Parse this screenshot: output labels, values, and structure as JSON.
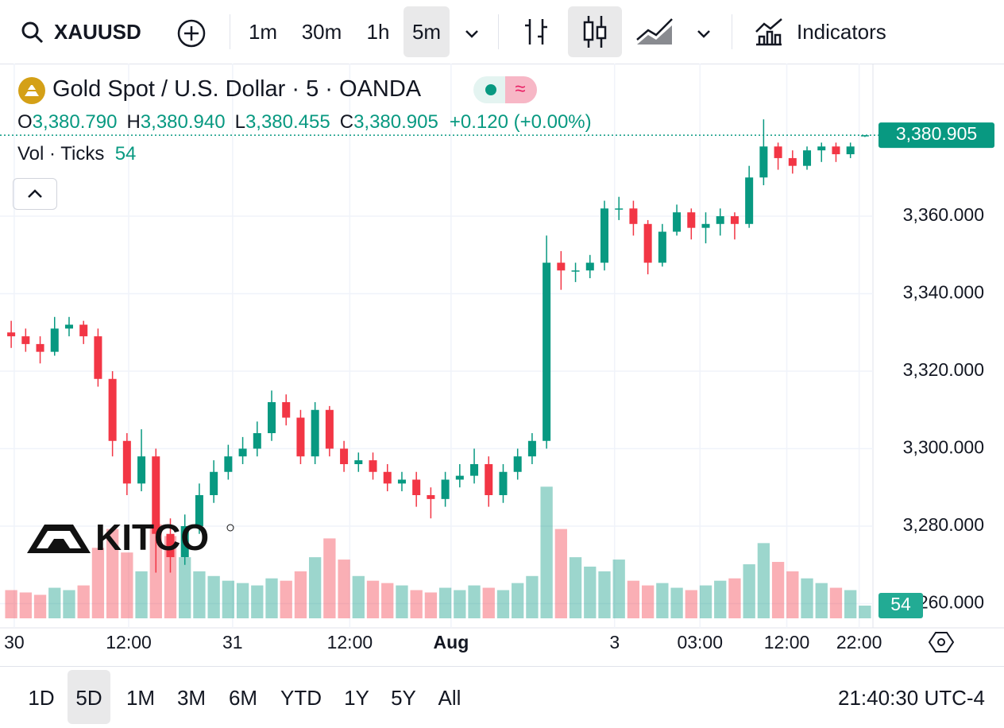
{
  "toolbar": {
    "symbol": "XAUUSD",
    "intervals": [
      "1m",
      "30m",
      "1h",
      "5m"
    ],
    "selected_interval": 3,
    "indicators": "Indicators"
  },
  "legend": {
    "title": "Gold Spot / U.S. Dollar · 5 · OANDA",
    "ohlc": [
      {
        "key": "O",
        "value": "3,380.790"
      },
      {
        "key": "H",
        "value": "3,380.940"
      },
      {
        "key": "L",
        "value": "3,380.455"
      },
      {
        "key": "C",
        "value": "3,380.905"
      }
    ],
    "change": "+0.120 (+0.00%)",
    "volume_label": "Vol · Ticks",
    "volume_value": "54"
  },
  "logo": "KITCO",
  "chart_data": {
    "type": "candlestick",
    "open": [
      3330,
      3329,
      3327,
      3325,
      3331,
      3332,
      3329,
      3318,
      3302,
      3291,
      3298,
      3278,
      3272,
      3280,
      3288,
      3294,
      3298,
      3300,
      3304,
      3312,
      3308,
      3298,
      3310,
      3300,
      3296,
      3297,
      3294,
      3291,
      3292,
      3288,
      3287,
      3292,
      3293,
      3296,
      3288,
      3294,
      3298,
      3302,
      3348,
      3346,
      3346,
      3348,
      3362,
      3362,
      3358,
      3348,
      3356,
      3361,
      3357,
      3358,
      3360,
      3358,
      3370,
      3378,
      3375,
      3373,
      3377,
      3378,
      3376,
      3380.79
    ],
    "high": [
      3333,
      3331,
      3329,
      3334,
      3334,
      3333,
      3331,
      3320,
      3304,
      3305,
      3300,
      3282,
      3283,
      3291,
      3297,
      3301,
      3303,
      3307,
      3315,
      3314,
      3310,
      3312,
      3311,
      3302,
      3299,
      3299,
      3296,
      3294,
      3294,
      3290,
      3294,
      3296,
      3300,
      3298,
      3296,
      3300,
      3304,
      3355,
      3351,
      3348,
      3350,
      3364,
      3365,
      3364,
      3359,
      3358,
      3363,
      3362,
      3361,
      3362,
      3361,
      3373,
      3385,
      3379,
      3377,
      3378,
      3379,
      3379,
      3379,
      3380.94
    ],
    "low": [
      3326,
      3325,
      3322,
      3324,
      3329,
      3327,
      3316,
      3298,
      3288,
      3289,
      3268,
      3268,
      3270,
      3278,
      3286,
      3292,
      3296,
      3298,
      3302,
      3306,
      3296,
      3296,
      3298,
      3294,
      3294,
      3292,
      3289,
      3289,
      3285,
      3282,
      3285,
      3290,
      3291,
      3285,
      3286,
      3292,
      3296,
      3300,
      3341,
      3343,
      3344,
      3346,
      3359,
      3355,
      3345,
      3347,
      3355,
      3354,
      3353,
      3355,
      3354,
      3357,
      3368,
      3372,
      3371,
      3372,
      3374,
      3374,
      3375,
      3380.455
    ],
    "close": [
      3329,
      3327,
      3325,
      3331,
      3332,
      3329,
      3318,
      3302,
      3291,
      3298,
      3278,
      3272,
      3280,
      3288,
      3294,
      3298,
      3300,
      3304,
      3312,
      3308,
      3298,
      3310,
      3300,
      3296,
      3297,
      3294,
      3291,
      3292,
      3288,
      3287,
      3292,
      3293,
      3296,
      3288,
      3294,
      3298,
      3302,
      3348,
      3346,
      3346,
      3348,
      3362,
      3362,
      3358,
      3348,
      3356,
      3361,
      3357,
      3358,
      3360,
      3358,
      3370,
      3378,
      3375,
      3373,
      3377,
      3378,
      3376,
      3378,
      3380.905
    ],
    "volume": [
      120,
      110,
      100,
      130,
      120,
      140,
      300,
      380,
      280,
      200,
      400,
      350,
      260,
      200,
      180,
      160,
      150,
      140,
      170,
      160,
      200,
      260,
      340,
      250,
      180,
      160,
      150,
      140,
      120,
      110,
      130,
      120,
      140,
      130,
      120,
      150,
      180,
      560,
      380,
      260,
      220,
      200,
      250,
      160,
      140,
      150,
      130,
      120,
      140,
      160,
      170,
      230,
      320,
      240,
      200,
      170,
      150,
      130,
      120,
      54
    ],
    "up_color": "#089981",
    "down_color": "#f23645",
    "xlim": [
      0,
      60
    ],
    "xticks": [
      {
        "value": 0.71,
        "label": "30"
      },
      {
        "value": 8.62,
        "label": "12:00"
      },
      {
        "value": 15.8,
        "label": "31"
      },
      {
        "value": 23.9,
        "label": "12:00"
      },
      {
        "value": 30.9,
        "label": "Aug",
        "bold": true
      },
      {
        "value": 42.2,
        "label": "3"
      },
      {
        "value": 48.1,
        "label": "03:00"
      },
      {
        "value": 54.1,
        "label": "12:00"
      },
      {
        "value": 59.1,
        "label": "22:00"
      }
    ],
    "ylim": [
      3256.2,
      3399.4
    ],
    "yticks": [
      {
        "value": 3260,
        "label": "3,260.000"
      },
      {
        "value": 3280,
        "label": "3,280.000"
      },
      {
        "value": 3300,
        "label": "3,300.000"
      },
      {
        "value": 3320,
        "label": "3,320.000"
      },
      {
        "value": 3340,
        "label": "3,340.000"
      },
      {
        "value": 3360,
        "label": "3,360.000"
      }
    ],
    "volume_lim": [
      0,
      2360
    ],
    "last_price": {
      "value": 3380.905,
      "label": "3,380.905"
    },
    "grid": true
  },
  "ranges": [
    "1D",
    "5D",
    "1M",
    "3M",
    "6M",
    "YTD",
    "1Y",
    "5Y",
    "All"
  ],
  "selected_range": 1,
  "clock": "21:40:30 UTC-4"
}
